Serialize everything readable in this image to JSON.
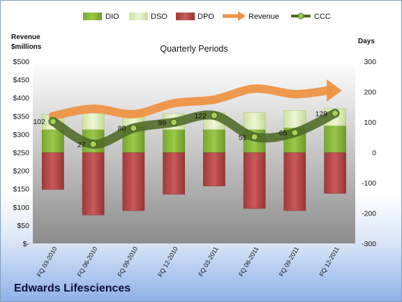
{
  "company": "Edwards Lifesciences",
  "colors": {
    "dio": "#8cb83c",
    "dso": "#dcecb4",
    "dpo": "#b84848",
    "revenue": "#ee9140",
    "ccc": "#4f6a25"
  },
  "chart_data": {
    "type": "bar",
    "title": "Quarterly Periods",
    "ylabel_left": [
      "Revenue",
      "$millions"
    ],
    "ylabel_right": "Days",
    "left_axis": {
      "range": [
        0,
        500
      ],
      "ticks": [
        "$-",
        "$50",
        "$100",
        "$150",
        "$200",
        "$250",
        "$300",
        "$350",
        "$400",
        "$450",
        "$500"
      ]
    },
    "right_axis": {
      "range": [
        -300,
        300
      ],
      "ticks": [
        "-300",
        "-200",
        "-100",
        "0",
        "100",
        "200",
        "300"
      ]
    },
    "legend_position": "top",
    "grid": false,
    "categories": [
      "FQ 03-2010",
      "FQ 06-2010",
      "FQ 09-2010",
      "FQ 12-2010",
      "FQ 03-2011",
      "FQ 06-2011",
      "FQ 09-2011",
      "FQ 12-2011"
    ],
    "series": [
      {
        "name": "DIO",
        "axis": "right",
        "kind": "stacked_bar",
        "values": [
          75,
          75,
          87,
          75,
          75,
          75,
          81,
          88
        ]
      },
      {
        "name": "DSO",
        "axis": "right",
        "kind": "stacked_bar",
        "values": [
          50,
          53,
          52,
          53,
          55,
          56,
          57,
          57
        ]
      },
      {
        "name": "DPO",
        "axis": "right",
        "kind": "stacked_bar",
        "values": [
          -122,
          -206,
          -192,
          -138,
          -111,
          -185,
          -192,
          -135
        ]
      },
      {
        "name": "Revenue",
        "axis": "left",
        "kind": "line",
        "values": [
          350,
          370,
          355,
          385,
          395,
          425,
          410,
          420
        ]
      },
      {
        "name": "CCC",
        "axis": "right",
        "kind": "line",
        "values": [
          102,
          27,
          80,
          99,
          122,
          51,
          65,
          129
        ]
      }
    ]
  }
}
